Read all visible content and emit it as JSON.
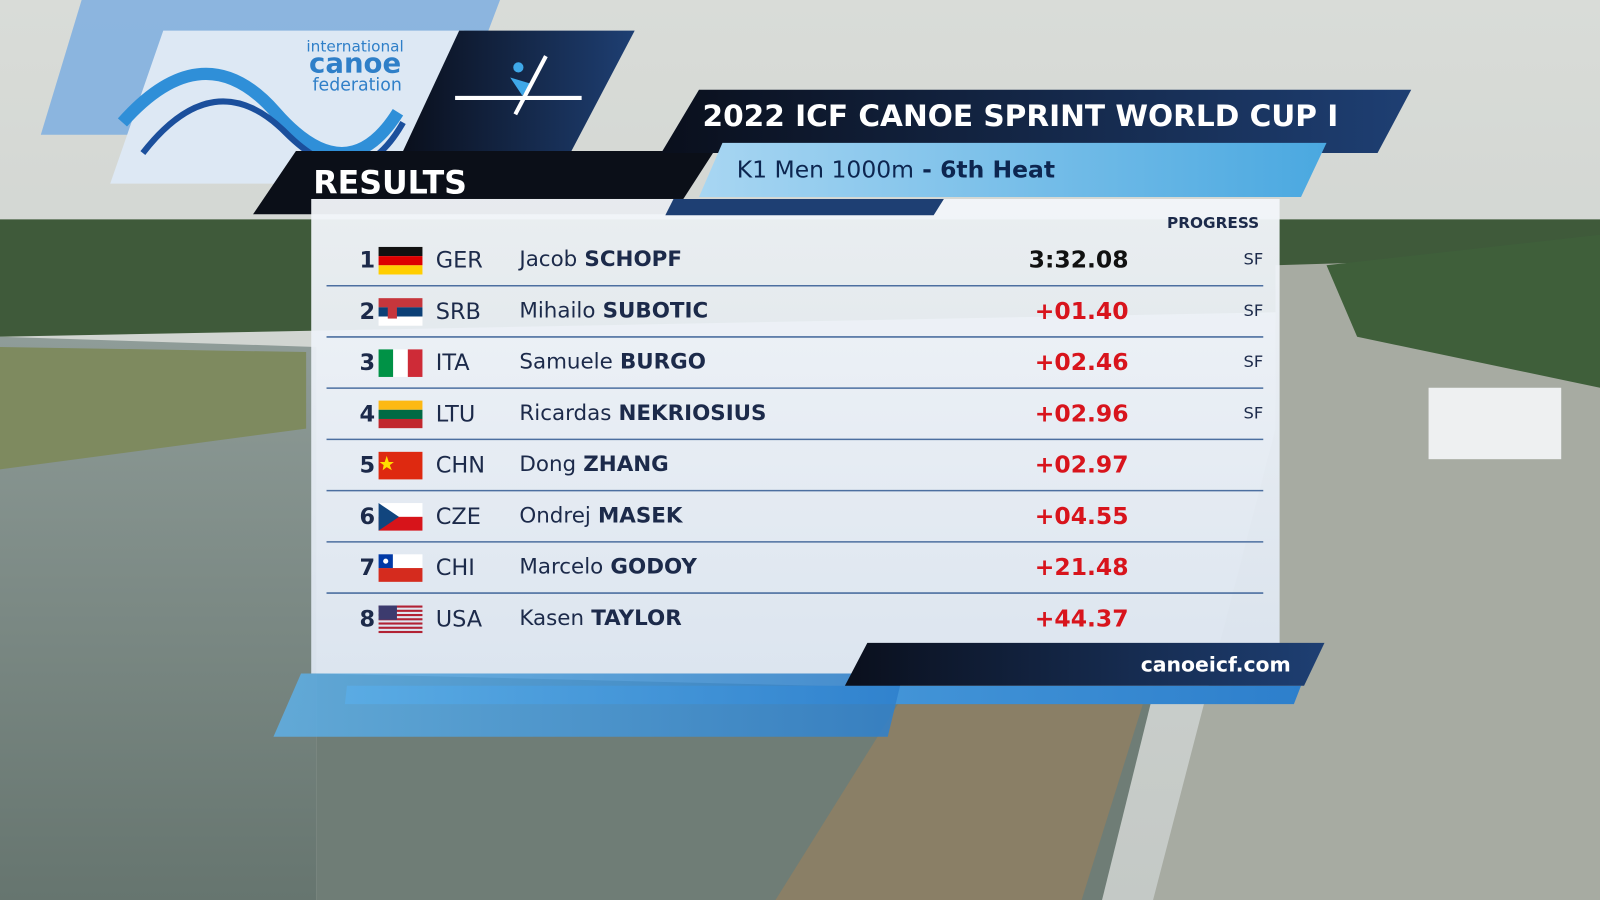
{
  "logo": {
    "line1": "international",
    "line2": "canoe",
    "line3": "federation"
  },
  "header": {
    "title": "2022 ICF CANOE SPRINT WORLD CUP I",
    "event": "K1 Men 1000m",
    "separator": "-",
    "heat": "6th Heat",
    "results": "RESULTS",
    "progress_label": "PROGRESS"
  },
  "rows": [
    {
      "rank": "1",
      "country": "GER",
      "first_name": "Jacob",
      "last_name": "SCHOPF",
      "time": "3:32.08",
      "progress": "SF"
    },
    {
      "rank": "2",
      "country": "SRB",
      "first_name": "Mihailo",
      "last_name": "SUBOTIC",
      "time": "+01.40",
      "progress": "SF"
    },
    {
      "rank": "3",
      "country": "ITA",
      "first_name": "Samuele",
      "last_name": "BURGO",
      "time": "+02.46",
      "progress": "SF"
    },
    {
      "rank": "4",
      "country": "LTU",
      "first_name": "Ricardas",
      "last_name": "NEKRIOSIUS",
      "time": "+02.96",
      "progress": "SF"
    },
    {
      "rank": "5",
      "country": "CHN",
      "first_name": "Dong",
      "last_name": "ZHANG",
      "time": "+02.97"
    },
    {
      "rank": "6",
      "country": "CZE",
      "first_name": "Ondrej",
      "last_name": "MASEK",
      "time": "+04.55"
    },
    {
      "rank": "7",
      "country": "CHI",
      "first_name": "Marcelo",
      "last_name": "GODOY",
      "time": "+21.48"
    },
    {
      "rank": "8",
      "country": "USA",
      "first_name": "Kasen",
      "last_name": "TAYLOR",
      "time": "+44.37"
    }
  ],
  "footer": {
    "url": "canoeicf.com"
  }
}
